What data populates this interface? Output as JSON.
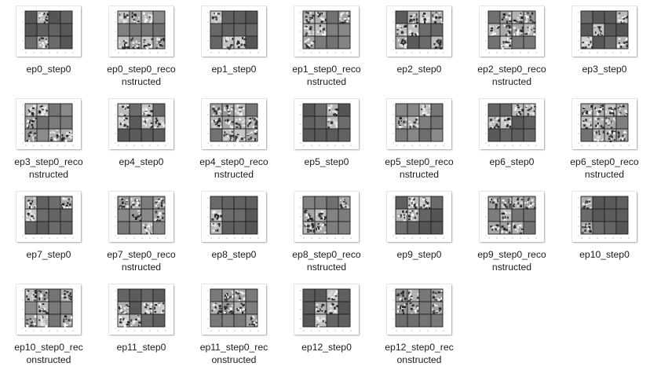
{
  "window": {
    "view": "large icons"
  },
  "files": [
    {
      "name": "ep0_step0",
      "line1": "ep0_step0",
      "line2": "",
      "variant": "orig"
    },
    {
      "name": "ep0_step0_reconstructed",
      "line1": "ep0_step0_reco",
      "line2": "nstructed",
      "variant": "recon"
    },
    {
      "name": "ep1_step0",
      "line1": "ep1_step0",
      "line2": "",
      "variant": "orig"
    },
    {
      "name": "ep1_step0_reconstructed",
      "line1": "ep1_step0_reco",
      "line2": "nstructed",
      "variant": "recon"
    },
    {
      "name": "ep2_step0",
      "line1": "ep2_step0",
      "line2": "",
      "variant": "orig"
    },
    {
      "name": "ep2_step0_reconstructed",
      "line1": "ep2_step0_reco",
      "line2": "nstructed",
      "variant": "recon"
    },
    {
      "name": "ep3_step0",
      "line1": "ep3_step0",
      "line2": "",
      "variant": "orig"
    },
    {
      "name": "ep3_step0_reconstructed",
      "line1": "ep3_step0_reco",
      "line2": "nstructed",
      "variant": "recon"
    },
    {
      "name": "ep4_step0",
      "line1": "ep4_step0",
      "line2": "",
      "variant": "orig"
    },
    {
      "name": "ep4_step0_reconstructed",
      "line1": "ep4_step0_reco",
      "line2": "nstructed",
      "variant": "recon"
    },
    {
      "name": "ep5_step0",
      "line1": "ep5_step0",
      "line2": "",
      "variant": "orig"
    },
    {
      "name": "ep5_step0_reconstructed",
      "line1": "ep5_step0_reco",
      "line2": "nstructed",
      "variant": "recon"
    },
    {
      "name": "ep6_step0",
      "line1": "ep6_step0",
      "line2": "",
      "variant": "orig"
    },
    {
      "name": "ep6_step0_reconstructed",
      "line1": "ep6_step0_reco",
      "line2": "nstructed",
      "variant": "recon"
    },
    {
      "name": "ep7_step0",
      "line1": "ep7_step0",
      "line2": "",
      "variant": "orig"
    },
    {
      "name": "ep7_step0_reconstructed",
      "line1": "ep7_step0_reco",
      "line2": "nstructed",
      "variant": "recon"
    },
    {
      "name": "ep8_step0",
      "line1": "ep8_step0",
      "line2": "",
      "variant": "orig"
    },
    {
      "name": "ep8_step0_reconstructed",
      "line1": "ep8_step0_reco",
      "line2": "nstructed",
      "variant": "recon"
    },
    {
      "name": "ep9_step0",
      "line1": "ep9_step0",
      "line2": "",
      "variant": "orig"
    },
    {
      "name": "ep9_step0_reconstructed",
      "line1": "ep9_step0_reco",
      "line2": "nstructed",
      "variant": "recon"
    },
    {
      "name": "ep10_step0",
      "line1": "ep10_step0",
      "line2": "",
      "variant": "orig"
    },
    {
      "name": "ep10_step0_reconstructed",
      "line1": "ep10_step0_rec",
      "line2": "onstructed",
      "variant": "recon"
    },
    {
      "name": "ep11_step0",
      "line1": "ep11_step0",
      "line2": "",
      "variant": "orig"
    },
    {
      "name": "ep11_step0_reconstructed",
      "line1": "ep11_step0_rec",
      "line2": "onstructed",
      "variant": "recon"
    },
    {
      "name": "ep12_step0",
      "line1": "ep12_step0",
      "line2": "",
      "variant": "orig"
    },
    {
      "name": "ep12_step0_reconstructed",
      "line1": "ep12_step0_rec",
      "line2": "onstructed",
      "variant": "recon"
    }
  ],
  "colors": {
    "label": "#1a1a1a",
    "cell_dark": "#5a5a5a",
    "cell_border": "#1e1e1e",
    "background": "#ffffff"
  }
}
